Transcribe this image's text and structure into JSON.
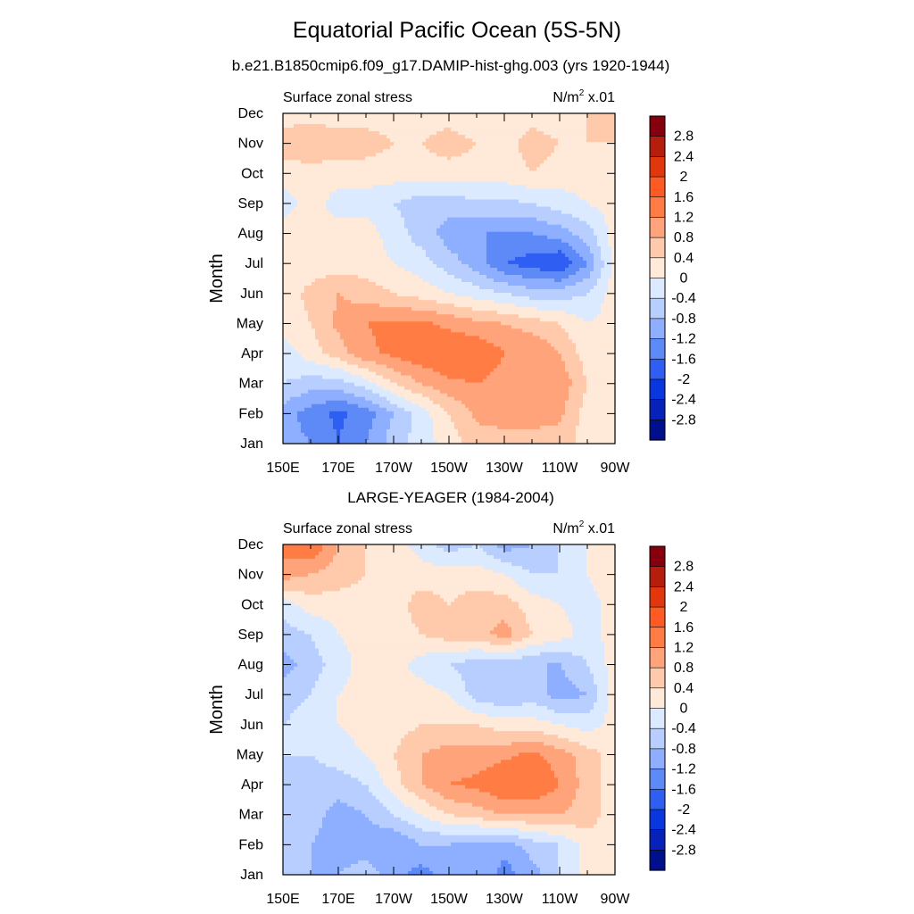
{
  "figure": {
    "title": "Equatorial Pacific Ocean (5S-5N)",
    "subtitle": "b.e21.B1850cmip6.f09_g17.DAMIP-hist-ghg.003 (yrs 1920-1944)",
    "panel2_title": "LARGE-YEAGER (1984-2004)"
  },
  "chart_data": [
    {
      "type": "heatmap",
      "title": "Surface zonal stress",
      "units_base": "N/m",
      "units_exp": "2",
      "units_scale": "x.01",
      "ylabel": "Month",
      "xlabel": "",
      "x_ticks": [
        "150E",
        "170E",
        "170W",
        "150W",
        "130W",
        "110W",
        "90W"
      ],
      "x_lon": [
        150,
        170,
        190,
        210,
        230,
        250,
        270
      ],
      "y_ticks": [
        "Jan",
        "Feb",
        "Mar",
        "Apr",
        "May",
        "Jun",
        "Jul",
        "Aug",
        "Sep",
        "Oct",
        "Nov",
        "Dec"
      ],
      "xlim": [
        150,
        270
      ],
      "colorbar_labels": [
        "2.8",
        "2.4",
        "2",
        "1.6",
        "1.2",
        "0.8",
        "0.4",
        "0",
        "-0.4",
        "-0.8",
        "-1.2",
        "-1.6",
        "-2",
        "-2.4",
        "-2.8"
      ],
      "colorbar_colors": [
        "#85000c",
        "#b51d0c",
        "#e0380c",
        "#ff5a23",
        "#ff7c45",
        "#ffa37a",
        "#ffc9ab",
        "#ffe9d9",
        "#dbeaff",
        "#b7ceff",
        "#8eaeff",
        "#5e8af7",
        "#2f5ef2",
        "#0a36e0",
        "#0622b8",
        "#000f8c"
      ],
      "lon": [
        150,
        160,
        170,
        180,
        190,
        200,
        210,
        220,
        230,
        240,
        250,
        260,
        270
      ],
      "month": [
        "Jan",
        "Feb",
        "Mar",
        "Apr",
        "May",
        "Jun",
        "Jul",
        "Aug",
        "Sep",
        "Oct",
        "Nov",
        "Dec"
      ],
      "values": [
        [
          -1.0,
          -1.2,
          -1.6,
          -1.2,
          -0.6,
          -0.2,
          0.2,
          0.6,
          0.6,
          0.6,
          0.6,
          0.2,
          0.2
        ],
        [
          -1.0,
          -1.4,
          -1.7,
          -1.4,
          -0.8,
          -0.2,
          0.4,
          0.9,
          1.0,
          1.0,
          0.9,
          0.2,
          0.2
        ],
        [
          -0.4,
          -0.6,
          -0.6,
          -0.2,
          0.4,
          0.8,
          1.1,
          1.2,
          1.0,
          0.8,
          1.1,
          0.4,
          0.2
        ],
        [
          -0.2,
          0.2,
          0.6,
          1.1,
          1.3,
          1.5,
          1.6,
          1.6,
          1.2,
          1.2,
          0.8,
          0.2,
          0.2
        ],
        [
          0.2,
          0.4,
          0.9,
          1.2,
          1.3,
          1.3,
          1.1,
          0.9,
          0.8,
          0.6,
          0.4,
          0.0,
          0.2
        ],
        [
          0.2,
          0.5,
          0.8,
          0.6,
          0.4,
          0.2,
          0.0,
          -0.2,
          -0.4,
          -0.6,
          -0.6,
          -0.4,
          0.2
        ],
        [
          0.2,
          0.2,
          0.2,
          0.2,
          0.0,
          -0.2,
          -0.6,
          -1.0,
          -1.6,
          -1.8,
          -2.0,
          -1.2,
          0.2
        ],
        [
          0.2,
          0.2,
          0.2,
          0.2,
          -0.2,
          -0.6,
          -1.0,
          -1.2,
          -1.2,
          -1.2,
          -1.0,
          -0.6,
          0.2
        ],
        [
          -0.2,
          0.2,
          -0.2,
          -0.2,
          -0.4,
          -0.6,
          -0.6,
          -0.5,
          -0.5,
          -0.4,
          -0.2,
          0.0,
          0.2
        ],
        [
          0.2,
          0.2,
          0.2,
          0.2,
          0.2,
          0.2,
          0.2,
          0.2,
          0.2,
          0.4,
          0.2,
          0.2,
          0.4
        ],
        [
          0.6,
          0.8,
          0.6,
          0.6,
          0.4,
          0.4,
          0.6,
          0.4,
          0.2,
          0.6,
          0.4,
          0.4,
          0.4
        ],
        [
          0.2,
          0.2,
          0.2,
          0.2,
          0.2,
          0.2,
          0.2,
          0.0,
          0.2,
          0.2,
          0.2,
          0.4,
          0.6
        ]
      ]
    },
    {
      "type": "heatmap",
      "title": "Surface zonal stress",
      "units_base": "N/m",
      "units_exp": "2",
      "units_scale": "x.01",
      "ylabel": "Month",
      "xlabel": "",
      "x_ticks": [
        "150E",
        "170E",
        "170W",
        "150W",
        "130W",
        "110W",
        "90W"
      ],
      "x_lon": [
        150,
        170,
        190,
        210,
        230,
        250,
        270
      ],
      "y_ticks": [
        "Jan",
        "Feb",
        "Mar",
        "Apr",
        "May",
        "Jun",
        "Jul",
        "Aug",
        "Sep",
        "Oct",
        "Nov",
        "Dec"
      ],
      "xlim": [
        150,
        270
      ],
      "colorbar_labels": [
        "2.8",
        "2.4",
        "2",
        "1.6",
        "1.2",
        "0.8",
        "0.4",
        "0",
        "-0.4",
        "-0.8",
        "-1.2",
        "-1.6",
        "-2",
        "-2.4",
        "-2.8"
      ],
      "colorbar_colors": [
        "#85000c",
        "#b51d0c",
        "#e0380c",
        "#ff5a23",
        "#ff7c45",
        "#ffa37a",
        "#ffc9ab",
        "#ffe9d9",
        "#dbeaff",
        "#b7ceff",
        "#8eaeff",
        "#5e8af7",
        "#2f5ef2",
        "#0a36e0",
        "#0622b8",
        "#000f8c"
      ],
      "lon": [
        150,
        160,
        170,
        180,
        190,
        200,
        210,
        220,
        230,
        240,
        250,
        260,
        270
      ],
      "month": [
        "Jan",
        "Feb",
        "Mar",
        "Apr",
        "May",
        "Jun",
        "Jul",
        "Aug",
        "Sep",
        "Oct",
        "Nov",
        "Dec"
      ],
      "values": [
        [
          -0.4,
          -0.8,
          -0.8,
          -0.6,
          -1.0,
          -1.4,
          -1.0,
          -0.8,
          -1.4,
          -1.0,
          -0.4,
          0.2,
          0.2
        ],
        [
          -0.6,
          -0.8,
          -1.0,
          -1.0,
          -1.2,
          -0.8,
          -0.8,
          -1.0,
          -1.0,
          -0.6,
          -0.4,
          0.2,
          0.2
        ],
        [
          -0.4,
          -0.6,
          -1.0,
          -0.8,
          -0.4,
          0.0,
          0.4,
          0.6,
          0.8,
          0.8,
          0.8,
          0.6,
          0.2
        ],
        [
          -0.4,
          -0.6,
          -0.6,
          -0.4,
          0.2,
          0.8,
          1.2,
          1.3,
          1.6,
          1.6,
          1.2,
          0.6,
          0.2
        ],
        [
          -0.4,
          -0.4,
          -0.2,
          0.0,
          0.4,
          0.8,
          1.0,
          1.0,
          1.1,
          1.3,
          1.0,
          0.6,
          0.2
        ],
        [
          -0.4,
          -0.2,
          0.0,
          0.2,
          0.2,
          0.4,
          0.4,
          0.4,
          0.2,
          0.2,
          0.0,
          -0.2,
          0.2
        ],
        [
          -0.6,
          -0.4,
          0.0,
          0.2,
          0.2,
          0.2,
          0.0,
          -0.6,
          -0.8,
          -0.6,
          -1.0,
          -0.8,
          0.2
        ],
        [
          -1.0,
          -0.6,
          -0.2,
          0.2,
          0.2,
          -0.2,
          -0.4,
          -0.6,
          -0.6,
          -0.8,
          -0.8,
          -0.4,
          0.2
        ],
        [
          -0.6,
          -0.4,
          0.0,
          0.2,
          0.2,
          0.4,
          0.6,
          0.6,
          1.0,
          0.4,
          0.2,
          -0.2,
          0.2
        ],
        [
          -0.2,
          0.2,
          0.2,
          0.2,
          0.2,
          0.6,
          0.4,
          0.6,
          0.6,
          0.2,
          0.0,
          -0.2,
          0.2
        ],
        [
          1.0,
          0.8,
          0.6,
          0.4,
          0.2,
          0.2,
          0.2,
          0.2,
          0.0,
          -0.4,
          -0.4,
          0.0,
          0.4
        ],
        [
          1.4,
          1.6,
          0.8,
          0.4,
          0.2,
          -0.2,
          -0.6,
          -0.4,
          -1.0,
          -0.8,
          -0.4,
          0.0,
          0.2
        ]
      ]
    }
  ]
}
